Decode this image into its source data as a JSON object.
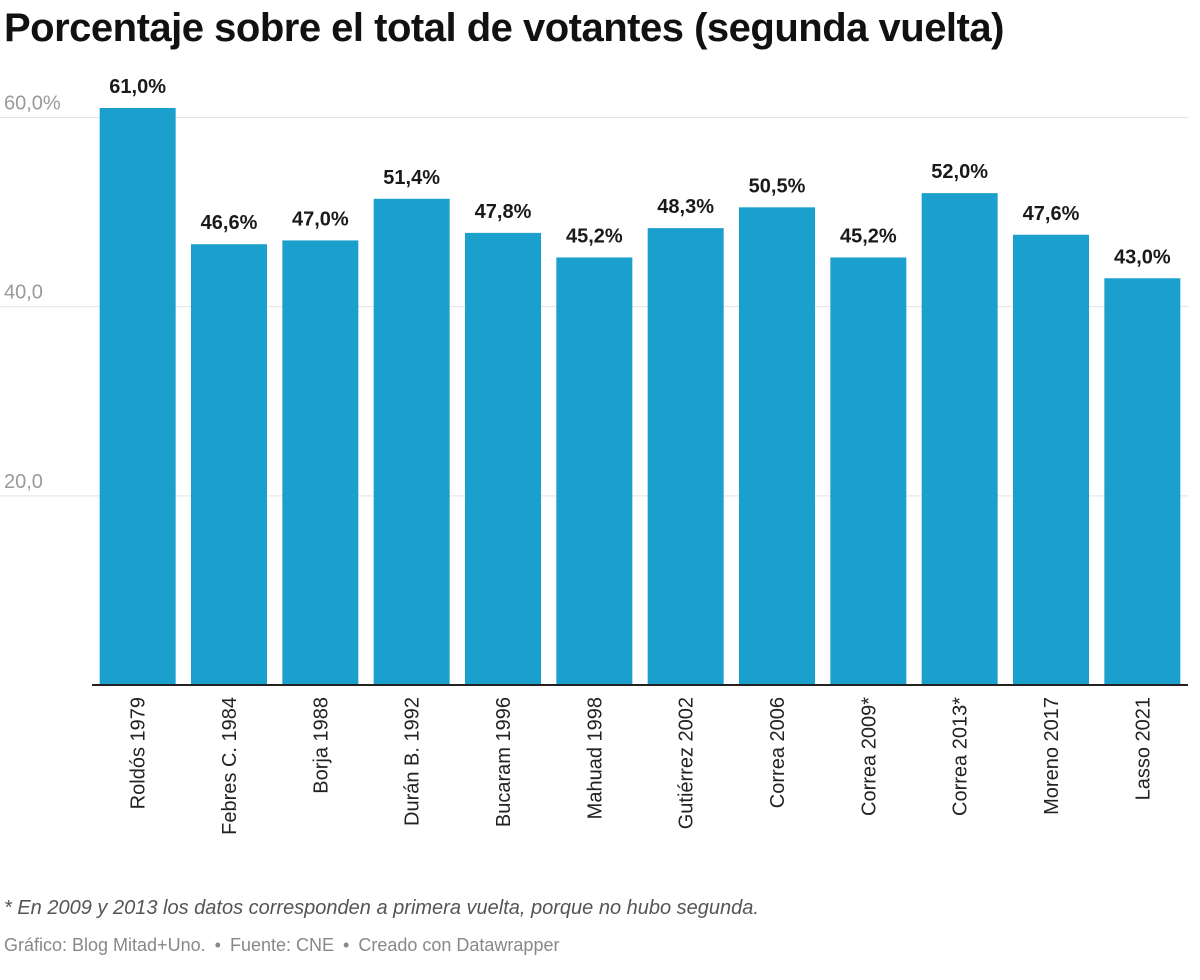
{
  "chart_data": {
    "type": "bar",
    "title": "Porcentaje sobre el total de votantes (segunda vuelta)",
    "categories": [
      "Roldós 1979",
      "Febres C. 1984",
      "Borja 1988",
      "Durán B. 1992",
      "Bucaram 1996",
      "Mahuad 1998",
      "Gutiérrez 2002",
      "Correa 2006",
      "Correa 2009*",
      "Correa 2013*",
      "Moreno 2017",
      "Lasso 2021"
    ],
    "values": [
      61.0,
      46.6,
      47.0,
      51.4,
      47.8,
      45.2,
      48.3,
      50.5,
      45.2,
      52.0,
      47.6,
      43.0
    ],
    "data_labels": [
      "61,0%",
      "46,6%",
      "47,0%",
      "51,4%",
      "47,8%",
      "45,2%",
      "48,3%",
      "50,5%",
      "45,2%",
      "52,0%",
      "47,6%",
      "43,0%"
    ],
    "yticks": [
      20,
      40,
      60
    ],
    "ytick_labels": [
      "20,0",
      "40,0",
      "60,0%"
    ],
    "ylim": [
      0,
      61
    ],
    "grid": true,
    "xlabel": "",
    "ylabel": "",
    "colors": {
      "bar": "#1ba0ce",
      "grid": "#e3e3e3",
      "tick_text": "#9a9a9a",
      "axis": "#222222"
    }
  },
  "footnote": "* En 2009 y 2013 los datos corresponden a primera vuelta, porque no hubo segunda.",
  "credits": {
    "source_graphic": "Gráfico: Blog Mitad+Uno.",
    "source_data": "Fuente: CNE",
    "tool": "Creado con Datawrapper",
    "separator": "•"
  }
}
